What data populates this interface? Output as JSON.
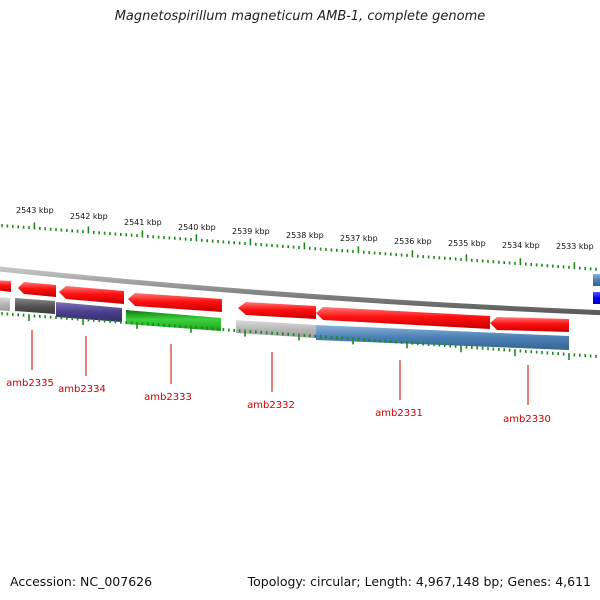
{
  "title": "Magnetospirillum magneticum AMB-1, complete genome",
  "footer": {
    "accession": "Accession: NC_007626",
    "topology": "Topology: circular; Length: 4,967,148 bp; Genes: 4,611"
  },
  "scale_labels": [
    "2543 kbp",
    "2542 kbp",
    "2541 kbp",
    "2540 kbp",
    "2539 kbp",
    "2538 kbp",
    "2537 kbp",
    "2536 kbp",
    "2535 kbp",
    "2534 kbp",
    "2533 kbp"
  ],
  "gene_labels": [
    "amb2335",
    "amb2334",
    "amb2333",
    "amb2332",
    "amb2331",
    "amb2330"
  ],
  "colors": {
    "red": "#ee0000",
    "dark_gray": "#555555",
    "purple": "#4a3f8c",
    "green": "#1db41d",
    "steel_blue": "#4a7fb5",
    "light_gray": "#b0b0b0",
    "blue": "#0000ee",
    "tick_green": "#1a8a1a",
    "label_red": "#cc0000"
  }
}
